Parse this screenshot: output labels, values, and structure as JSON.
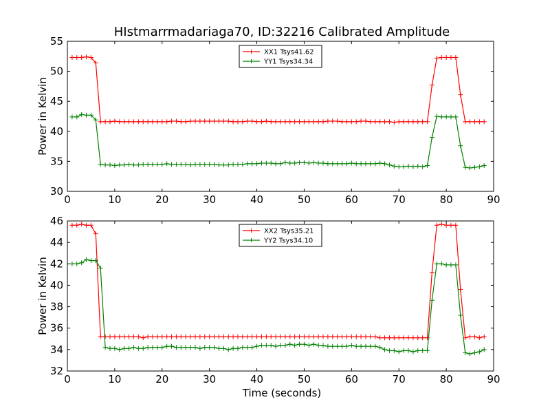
{
  "figure": {
    "title": "HIstmarrmadariaga70, ID:32216 Calibrated Amplitude",
    "xlabel": "Time (seconds)"
  },
  "chart_data": [
    {
      "type": "line",
      "ylabel": "Power in Kelvin",
      "xlim": [
        0,
        90
      ],
      "ylim": [
        30,
        55
      ],
      "xticks": [
        0,
        10,
        20,
        30,
        40,
        50,
        60,
        70,
        80,
        90
      ],
      "yticks": [
        30,
        35,
        40,
        45,
        50,
        55
      ],
      "grid": false,
      "legend_position": "top-center",
      "x": [
        1,
        2,
        3,
        4,
        5,
        6,
        7,
        8,
        9,
        10,
        11,
        12,
        13,
        14,
        15,
        16,
        17,
        18,
        19,
        20,
        21,
        22,
        23,
        24,
        25,
        26,
        27,
        28,
        29,
        30,
        31,
        32,
        33,
        34,
        35,
        36,
        37,
        38,
        39,
        40,
        41,
        42,
        43,
        44,
        45,
        46,
        47,
        48,
        49,
        50,
        51,
        52,
        53,
        54,
        55,
        56,
        57,
        58,
        59,
        60,
        61,
        62,
        63,
        64,
        65,
        66,
        67,
        68,
        69,
        70,
        71,
        72,
        73,
        74,
        75,
        76,
        77,
        78,
        79,
        80,
        81,
        82,
        83,
        84,
        85,
        86,
        87,
        88
      ],
      "series": [
        {
          "name": "XX1 Tsys41.62",
          "color": "#ff0000",
          "values": [
            52.3,
            52.3,
            52.3,
            52.4,
            52.3,
            51.4,
            41.6,
            41.6,
            41.6,
            41.7,
            41.6,
            41.6,
            41.6,
            41.6,
            41.6,
            41.6,
            41.6,
            41.6,
            41.6,
            41.6,
            41.6,
            41.7,
            41.7,
            41.6,
            41.6,
            41.7,
            41.7,
            41.7,
            41.7,
            41.7,
            41.7,
            41.7,
            41.7,
            41.7,
            41.6,
            41.6,
            41.6,
            41.7,
            41.7,
            41.6,
            41.6,
            41.7,
            41.6,
            41.6,
            41.6,
            41.6,
            41.6,
            41.6,
            41.6,
            41.6,
            41.6,
            41.6,
            41.6,
            41.6,
            41.7,
            41.7,
            41.7,
            41.6,
            41.6,
            41.6,
            41.6,
            41.7,
            41.7,
            41.6,
            41.6,
            41.6,
            41.6,
            41.6,
            41.5,
            41.6,
            41.6,
            41.6,
            41.6,
            41.6,
            41.6,
            41.6,
            47.7,
            52.2,
            52.3,
            52.3,
            52.3,
            52.3,
            46.1,
            41.6,
            41.6,
            41.6,
            41.6,
            41.6
          ]
        },
        {
          "name": "YY1 Tsys34.34",
          "color": "#008000",
          "values": [
            42.4,
            42.4,
            42.8,
            42.7,
            42.7,
            41.9,
            34.5,
            34.4,
            34.4,
            34.3,
            34.4,
            34.4,
            34.5,
            34.4,
            34.4,
            34.5,
            34.5,
            34.5,
            34.5,
            34.5,
            34.6,
            34.5,
            34.5,
            34.5,
            34.5,
            34.4,
            34.5,
            34.5,
            34.5,
            34.5,
            34.5,
            34.4,
            34.4,
            34.4,
            34.5,
            34.5,
            34.5,
            34.6,
            34.6,
            34.6,
            34.7,
            34.7,
            34.7,
            34.6,
            34.6,
            34.8,
            34.7,
            34.7,
            34.8,
            34.8,
            34.7,
            34.8,
            34.7,
            34.7,
            34.6,
            34.6,
            34.6,
            34.6,
            34.6,
            34.7,
            34.6,
            34.6,
            34.6,
            34.6,
            34.6,
            34.7,
            34.6,
            34.4,
            34.2,
            34.1,
            34.1,
            34.2,
            34.1,
            34.2,
            34.1,
            34.3,
            39.0,
            42.5,
            42.4,
            42.4,
            42.4,
            42.4,
            37.6,
            34.0,
            33.9,
            34.0,
            34.1,
            34.3
          ]
        }
      ]
    },
    {
      "type": "line",
      "ylabel": "Power in Kelvin",
      "xlim": [
        0,
        90
      ],
      "ylim": [
        32,
        46
      ],
      "xticks": [
        0,
        10,
        20,
        30,
        40,
        50,
        60,
        70,
        80,
        90
      ],
      "yticks": [
        32,
        34,
        36,
        38,
        40,
        42,
        44,
        46
      ],
      "grid": false,
      "legend_position": "top-center",
      "x": [
        1,
        2,
        3,
        4,
        5,
        6,
        7,
        8,
        9,
        10,
        11,
        12,
        13,
        14,
        15,
        16,
        17,
        18,
        19,
        20,
        21,
        22,
        23,
        24,
        25,
        26,
        27,
        28,
        29,
        30,
        31,
        32,
        33,
        34,
        35,
        36,
        37,
        38,
        39,
        40,
        41,
        42,
        43,
        44,
        45,
        46,
        47,
        48,
        49,
        50,
        51,
        52,
        53,
        54,
        55,
        56,
        57,
        58,
        59,
        60,
        61,
        62,
        63,
        64,
        65,
        66,
        67,
        68,
        69,
        70,
        71,
        72,
        73,
        74,
        75,
        76,
        77,
        78,
        79,
        80,
        81,
        82,
        83,
        84,
        85,
        86,
        87,
        88
      ],
      "series": [
        {
          "name": "XX2 Tsys35.21",
          "color": "#ff0000",
          "values": [
            45.6,
            45.6,
            45.7,
            45.6,
            45.6,
            44.8,
            35.2,
            35.2,
            35.2,
            35.2,
            35.2,
            35.2,
            35.2,
            35.2,
            35.2,
            35.1,
            35.2,
            35.2,
            35.2,
            35.2,
            35.2,
            35.2,
            35.2,
            35.2,
            35.2,
            35.2,
            35.2,
            35.2,
            35.2,
            35.2,
            35.2,
            35.2,
            35.2,
            35.2,
            35.2,
            35.2,
            35.2,
            35.2,
            35.2,
            35.2,
            35.2,
            35.2,
            35.2,
            35.2,
            35.2,
            35.2,
            35.2,
            35.2,
            35.2,
            35.2,
            35.2,
            35.2,
            35.2,
            35.2,
            35.2,
            35.2,
            35.2,
            35.2,
            35.2,
            35.2,
            35.2,
            35.2,
            35.2,
            35.2,
            35.2,
            35.1,
            35.1,
            35.1,
            35.1,
            35.1,
            35.1,
            35.1,
            35.1,
            35.1,
            35.1,
            35.1,
            41.2,
            45.6,
            45.7,
            45.6,
            45.6,
            45.6,
            39.6,
            35.1,
            35.2,
            35.2,
            35.1,
            35.2
          ]
        },
        {
          "name": "YY2 Tsys34.10",
          "color": "#008000",
          "values": [
            42.0,
            42.0,
            42.1,
            42.4,
            42.3,
            42.3,
            41.6,
            34.2,
            34.1,
            34.1,
            34.0,
            34.1,
            34.1,
            34.2,
            34.1,
            34.1,
            34.2,
            34.2,
            34.2,
            34.2,
            34.3,
            34.3,
            34.2,
            34.2,
            34.2,
            34.2,
            34.2,
            34.1,
            34.2,
            34.2,
            34.2,
            34.1,
            34.1,
            34.0,
            34.1,
            34.1,
            34.2,
            34.2,
            34.2,
            34.3,
            34.4,
            34.4,
            34.4,
            34.3,
            34.4,
            34.4,
            34.5,
            34.4,
            34.5,
            34.5,
            34.4,
            34.5,
            34.4,
            34.4,
            34.3,
            34.3,
            34.3,
            34.3,
            34.3,
            34.4,
            34.3,
            34.3,
            34.3,
            34.3,
            34.3,
            34.2,
            34.0,
            33.9,
            33.9,
            33.8,
            33.9,
            33.9,
            33.8,
            33.9,
            33.9,
            33.9,
            38.6,
            42.0,
            42.0,
            41.9,
            41.9,
            41.9,
            37.2,
            33.7,
            33.6,
            33.7,
            33.8,
            34.0
          ]
        }
      ]
    }
  ]
}
